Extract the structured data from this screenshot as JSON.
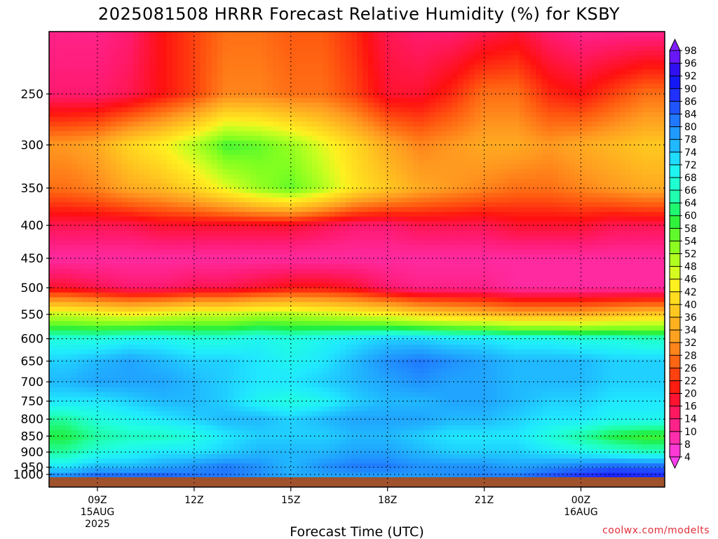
{
  "chart_data": {
    "type": "heatmap",
    "title": "2025081508 HRRR Forecast Relative Humidity (%) for KSBY",
    "xlabel": "Forecast Time (UTC)",
    "ylabel": "",
    "credit": "coolwx.com/modelts",
    "x_hours": [
      8,
      9,
      10,
      11,
      12,
      13,
      14,
      15,
      16,
      17,
      18,
      19,
      20,
      21,
      22,
      23,
      24,
      25,
      26
    ],
    "xlim": [
      7.5,
      26.6
    ],
    "x_ticks": [
      {
        "hour": 9,
        "lines": [
          "09Z",
          "15AUG",
          "2025"
        ]
      },
      {
        "hour": 12,
        "lines": [
          "12Z"
        ]
      },
      {
        "hour": 15,
        "lines": [
          "15Z"
        ]
      },
      {
        "hour": 18,
        "lines": [
          "18Z"
        ]
      },
      {
        "hour": 21,
        "lines": [
          "21Z"
        ]
      },
      {
        "hour": 24,
        "lines": [
          "00Z",
          "16AUG"
        ]
      }
    ],
    "y_levels_hPa": [
      200,
      250,
      300,
      350,
      400,
      450,
      500,
      550,
      600,
      650,
      700,
      750,
      800,
      850,
      900,
      950,
      1000
    ],
    "y_tick_labels": [
      "250",
      "300",
      "350",
      "400",
      "450",
      "500",
      "550",
      "600",
      "650",
      "700",
      "750",
      "800",
      "850",
      "900",
      "950",
      "1000"
    ],
    "ylim": [
      200,
      1020
    ],
    "y_scale": "log-pressure",
    "grid": true,
    "surface_band": "below ~1008 hPa",
    "values": [
      [
        12,
        12,
        14,
        20,
        24,
        28,
        28,
        26,
        26,
        22,
        16,
        14,
        14,
        16,
        18,
        14,
        12,
        12,
        12
      ],
      [
        14,
        14,
        16,
        20,
        24,
        30,
        30,
        28,
        28,
        24,
        18,
        18,
        22,
        28,
        28,
        22,
        20,
        24,
        28
      ],
      [
        32,
        34,
        40,
        44,
        50,
        58,
        56,
        52,
        46,
        40,
        34,
        30,
        32,
        34,
        34,
        32,
        34,
        36,
        38
      ],
      [
        28,
        30,
        34,
        36,
        40,
        46,
        52,
        56,
        50,
        42,
        38,
        34,
        32,
        30,
        28,
        28,
        30,
        32,
        34
      ],
      [
        16,
        16,
        16,
        18,
        18,
        18,
        18,
        18,
        16,
        14,
        14,
        16,
        16,
        16,
        18,
        18,
        18,
        16,
        16
      ],
      [
        10,
        10,
        10,
        10,
        10,
        10,
        10,
        10,
        10,
        10,
        10,
        10,
        10,
        10,
        10,
        10,
        10,
        10,
        10
      ],
      [
        18,
        16,
        14,
        14,
        16,
        16,
        18,
        20,
        20,
        18,
        14,
        12,
        12,
        12,
        10,
        10,
        10,
        10,
        10
      ],
      [
        48,
        46,
        44,
        46,
        48,
        48,
        50,
        50,
        48,
        46,
        44,
        40,
        38,
        36,
        34,
        34,
        34,
        36,
        38
      ],
      [
        68,
        68,
        70,
        70,
        68,
        68,
        70,
        68,
        70,
        72,
        74,
        74,
        72,
        72,
        70,
        70,
        68,
        68,
        66
      ],
      [
        74,
        76,
        78,
        76,
        74,
        74,
        72,
        70,
        72,
        76,
        80,
        82,
        80,
        78,
        76,
        76,
        76,
        74,
        74
      ],
      [
        76,
        78,
        78,
        78,
        76,
        74,
        72,
        72,
        74,
        76,
        78,
        80,
        78,
        78,
        76,
        76,
        76,
        74,
        74
      ],
      [
        72,
        72,
        74,
        76,
        76,
        74,
        70,
        68,
        70,
        74,
        76,
        76,
        78,
        78,
        76,
        74,
        74,
        72,
        72
      ],
      [
        64,
        68,
        70,
        72,
        74,
        76,
        76,
        74,
        76,
        78,
        78,
        78,
        76,
        76,
        74,
        72,
        72,
        70,
        70
      ],
      [
        60,
        64,
        66,
        66,
        68,
        72,
        74,
        74,
        74,
        76,
        76,
        74,
        72,
        72,
        72,
        68,
        64,
        60,
        58
      ],
      [
        64,
        68,
        70,
        72,
        72,
        74,
        76,
        76,
        76,
        78,
        78,
        76,
        74,
        74,
        74,
        72,
        70,
        68,
        66
      ],
      [
        72,
        76,
        76,
        78,
        80,
        82,
        80,
        76,
        80,
        82,
        82,
        80,
        80,
        80,
        78,
        80,
        82,
        84,
        84
      ],
      [
        86,
        88,
        88,
        88,
        84,
        82,
        80,
        78,
        76,
        76,
        76,
        78,
        80,
        82,
        84,
        88,
        92,
        94,
        92
      ]
    ],
    "colorbar": {
      "labels": [
        "98",
        "96",
        "92",
        "90",
        "86",
        "84",
        "80",
        "78",
        "74",
        "72",
        "68",
        "66",
        "64",
        "60",
        "58",
        "54",
        "52",
        "48",
        "46",
        "42",
        "40",
        "36",
        "34",
        "32",
        "28",
        "26",
        "22",
        "20",
        "16",
        "14",
        "10",
        "8",
        "4"
      ],
      "stops": [
        {
          "v": 4,
          "c": "#ff40f0"
        },
        {
          "v": 10,
          "c": "#ff2aa0"
        },
        {
          "v": 14,
          "c": "#ff1a70"
        },
        {
          "v": 20,
          "c": "#ff1010"
        },
        {
          "v": 26,
          "c": "#ff5a10"
        },
        {
          "v": 32,
          "c": "#ff9a20"
        },
        {
          "v": 38,
          "c": "#ffc820"
        },
        {
          "v": 44,
          "c": "#fff020"
        },
        {
          "v": 48,
          "c": "#c8ff20"
        },
        {
          "v": 54,
          "c": "#80ff20"
        },
        {
          "v": 60,
          "c": "#20ee40"
        },
        {
          "v": 64,
          "c": "#20ffa0"
        },
        {
          "v": 68,
          "c": "#20ffe0"
        },
        {
          "v": 72,
          "c": "#20e8ff"
        },
        {
          "v": 76,
          "c": "#20b8ff"
        },
        {
          "v": 80,
          "c": "#2090ff"
        },
        {
          "v": 84,
          "c": "#2060ff"
        },
        {
          "v": 88,
          "c": "#2030ff"
        },
        {
          "v": 92,
          "c": "#1010f0"
        },
        {
          "v": 96,
          "c": "#5010f0"
        },
        {
          "v": 98,
          "c": "#8020ff"
        }
      ]
    },
    "surface_color": "#a0522d"
  }
}
